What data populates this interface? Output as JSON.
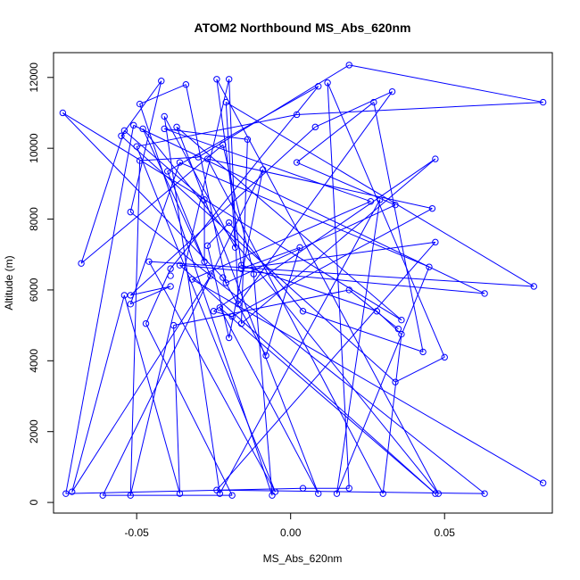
{
  "chart_data": {
    "type": "line",
    "title": "ATOM2 Northbound MS_Abs_620nm",
    "xlabel": "MS_Abs_620nm",
    "ylabel": "Altitude (m)",
    "xlim": [
      -0.077,
      0.085
    ],
    "ylim": [
      -300,
      12700
    ],
    "xticks": [
      -0.05,
      0.0,
      0.05
    ],
    "xtick_labels": [
      "-0.05",
      "0.00",
      "0.05"
    ],
    "yticks": [
      0,
      2000,
      4000,
      6000,
      8000,
      10000,
      12000
    ],
    "ytick_labels": [
      "0",
      "2000",
      "4000",
      "6000",
      "8000",
      "10000",
      "12000"
    ],
    "grid": false,
    "legend": "none",
    "series": [
      {
        "color": "#0000ff",
        "marker": "open-circle",
        "points": [
          [
            0.019,
            12350
          ],
          [
            -0.024,
            11950
          ],
          [
            -0.02,
            11950
          ],
          [
            -0.042,
            11900
          ],
          [
            -0.034,
            11800
          ],
          [
            0.012,
            11850
          ],
          [
            0.009,
            11750
          ],
          [
            0.033,
            11600
          ],
          [
            -0.049,
            11250
          ],
          [
            -0.021,
            11300
          ],
          [
            0.027,
            11300
          ],
          [
            0.082,
            11300
          ],
          [
            -0.074,
            11000
          ],
          [
            -0.041,
            10900
          ],
          [
            0.002,
            10950
          ],
          [
            -0.051,
            10650
          ],
          [
            -0.048,
            10550
          ],
          [
            -0.041,
            10550
          ],
          [
            -0.037,
            10600
          ],
          [
            0.008,
            10600
          ],
          [
            -0.054,
            10500
          ],
          [
            -0.055,
            10350
          ],
          [
            -0.014,
            10250
          ],
          [
            -0.022,
            10100
          ],
          [
            -0.05,
            10050
          ],
          [
            -0.049,
            9650
          ],
          [
            -0.036,
            9600
          ],
          [
            -0.03,
            9750
          ],
          [
            -0.027,
            9700
          ],
          [
            0.047,
            9700
          ],
          [
            0.002,
            9600
          ],
          [
            -0.04,
            9350
          ],
          [
            -0.009,
            9400
          ],
          [
            -0.028,
            8550
          ],
          [
            0.026,
            8500
          ],
          [
            0.029,
            8550
          ],
          [
            0.034,
            8400
          ],
          [
            0.046,
            8300
          ],
          [
            -0.052,
            8200
          ],
          [
            -0.02,
            7900
          ],
          [
            -0.027,
            7250
          ],
          [
            -0.018,
            7200
          ],
          [
            0.003,
            7200
          ],
          [
            0.047,
            7350
          ],
          [
            -0.068,
            6750
          ],
          [
            -0.046,
            6800
          ],
          [
            -0.036,
            6700
          ],
          [
            -0.028,
            6800
          ],
          [
            -0.016,
            6700
          ],
          [
            -0.039,
            6600
          ],
          [
            -0.016,
            6600
          ],
          [
            -0.022,
            6350
          ],
          [
            -0.026,
            6400
          ],
          [
            -0.039,
            6400
          ],
          [
            -0.012,
            6450
          ],
          [
            0.045,
            6650
          ],
          [
            -0.039,
            6100
          ],
          [
            -0.032,
            6300
          ],
          [
            -0.021,
            6200
          ],
          [
            0.019,
            6000
          ],
          [
            0.079,
            6100
          ],
          [
            0.063,
            5900
          ],
          [
            -0.054,
            5850
          ],
          [
            -0.052,
            5850
          ],
          [
            -0.052,
            5600
          ],
          [
            -0.023,
            5500
          ],
          [
            -0.025,
            5400
          ],
          [
            -0.019,
            5250
          ],
          [
            -0.017,
            5600
          ],
          [
            0.004,
            5400
          ],
          [
            0.028,
            5400
          ],
          [
            0.036,
            5150
          ],
          [
            -0.047,
            5050
          ],
          [
            -0.038,
            5000
          ],
          [
            -0.016,
            5050
          ],
          [
            0.035,
            4900
          ],
          [
            0.036,
            4750
          ],
          [
            -0.02,
            4650
          ],
          [
            0.043,
            4250
          ],
          [
            0.05,
            4100
          ],
          [
            -0.008,
            4150
          ],
          [
            0.034,
            3400
          ],
          [
            -0.073,
            250
          ],
          [
            -0.071,
            300
          ],
          [
            -0.061,
            200
          ],
          [
            -0.052,
            200
          ],
          [
            -0.036,
            250
          ],
          [
            -0.024,
            350
          ],
          [
            -0.023,
            250
          ],
          [
            -0.019,
            200
          ],
          [
            -0.006,
            200
          ],
          [
            -0.005,
            300
          ],
          [
            0.004,
            400
          ],
          [
            0.009,
            250
          ],
          [
            0.015,
            250
          ],
          [
            0.019,
            400
          ],
          [
            0.03,
            250
          ],
          [
            0.047,
            250
          ],
          [
            0.048,
            250
          ],
          [
            0.063,
            250
          ],
          [
            0.082,
            550
          ]
        ]
      }
    ]
  }
}
